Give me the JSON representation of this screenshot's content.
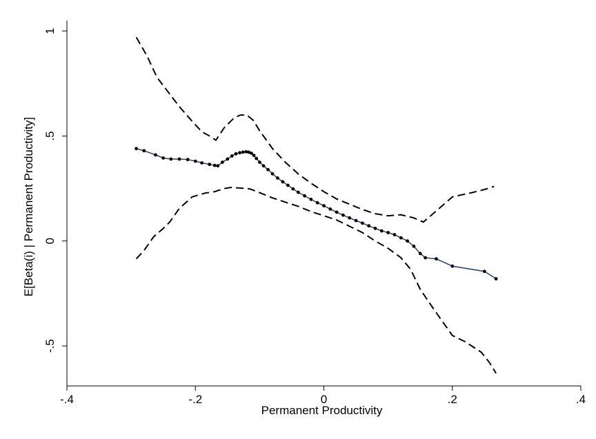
{
  "chart_data": {
    "type": "line",
    "title": "",
    "xlabel": "Permanent Productivity",
    "ylabel": "E[Beta(i) | Permanent Productivity]",
    "xlim": [
      -0.4,
      0.4
    ],
    "ylim": [
      -0.6,
      1.0
    ],
    "xticks": [
      -0.4,
      -0.2,
      0,
      0.2,
      0.4
    ],
    "xtick_labels": [
      "-.4",
      "-.2",
      "0",
      ".2",
      ".4"
    ],
    "yticks": [
      -0.5,
      0,
      0.5,
      1
    ],
    "ytick_labels": [
      "-.5",
      "0",
      ".5",
      "1"
    ],
    "grid": false,
    "legend": "none",
    "colors": {
      "estimate_line": "#2f4a73",
      "markers": "#000000",
      "bands": "#000000"
    },
    "series": [
      {
        "role": "estimate",
        "style": "solid-with-markers",
        "x": [
          -0.292,
          -0.28,
          -0.262,
          -0.25,
          -0.238,
          -0.225,
          -0.212,
          -0.2,
          -0.19,
          -0.178,
          -0.17,
          -0.165,
          -0.158,
          -0.15,
          -0.143,
          -0.137,
          -0.131,
          -0.126,
          -0.121,
          -0.117,
          -0.113,
          -0.109,
          -0.105,
          -0.1,
          -0.094,
          -0.087,
          -0.08,
          -0.072,
          -0.064,
          -0.056,
          -0.048,
          -0.04,
          -0.03,
          -0.02,
          -0.01,
          0.0,
          0.01,
          0.02,
          0.03,
          0.04,
          0.05,
          0.06,
          0.07,
          0.08,
          0.09,
          0.1,
          0.11,
          0.12,
          0.13,
          0.14,
          0.15,
          0.158,
          0.175,
          0.2,
          0.25,
          0.268
        ],
        "y": [
          0.44,
          0.43,
          0.41,
          0.395,
          0.39,
          0.39,
          0.388,
          0.38,
          0.372,
          0.365,
          0.36,
          0.358,
          0.375,
          0.39,
          0.405,
          0.415,
          0.42,
          0.423,
          0.425,
          0.423,
          0.418,
          0.408,
          0.393,
          0.375,
          0.358,
          0.34,
          0.32,
          0.3,
          0.282,
          0.265,
          0.248,
          0.232,
          0.215,
          0.198,
          0.182,
          0.168,
          0.152,
          0.137,
          0.123,
          0.11,
          0.097,
          0.085,
          0.072,
          0.06,
          0.048,
          0.04,
          0.03,
          0.015,
          0.0,
          -0.025,
          -0.06,
          -0.08,
          -0.085,
          -0.12,
          -0.145,
          -0.18
        ]
      },
      {
        "role": "upper-band",
        "style": "dashed",
        "x": [
          -0.292,
          -0.275,
          -0.26,
          -0.245,
          -0.225,
          -0.205,
          -0.19,
          -0.178,
          -0.168,
          -0.155,
          -0.14,
          -0.13,
          -0.12,
          -0.11,
          -0.1,
          -0.08,
          -0.06,
          -0.04,
          -0.02,
          0.0,
          0.02,
          0.04,
          0.06,
          0.08,
          0.1,
          0.12,
          0.14,
          0.155,
          0.17,
          0.2,
          0.23,
          0.25,
          0.265
        ],
        "y": [
          0.97,
          0.88,
          0.78,
          0.72,
          0.64,
          0.57,
          0.52,
          0.5,
          0.48,
          0.54,
          0.585,
          0.6,
          0.6,
          0.575,
          0.525,
          0.44,
          0.375,
          0.32,
          0.275,
          0.235,
          0.2,
          0.175,
          0.15,
          0.13,
          0.12,
          0.125,
          0.11,
          0.09,
          0.13,
          0.21,
          0.23,
          0.245,
          0.26
        ]
      },
      {
        "role": "lower-band",
        "style": "dashed",
        "x": [
          -0.292,
          -0.28,
          -0.265,
          -0.25,
          -0.24,
          -0.225,
          -0.205,
          -0.185,
          -0.17,
          -0.155,
          -0.145,
          -0.13,
          -0.115,
          -0.1,
          -0.08,
          -0.06,
          -0.04,
          -0.02,
          0.0,
          0.02,
          0.04,
          0.06,
          0.08,
          0.1,
          0.12,
          0.135,
          0.15,
          0.17,
          0.2,
          0.22,
          0.245,
          0.258,
          0.268
        ],
        "y": [
          -0.085,
          -0.045,
          0.02,
          0.06,
          0.09,
          0.155,
          0.21,
          0.228,
          0.235,
          0.25,
          0.255,
          0.252,
          0.248,
          0.23,
          0.205,
          0.185,
          0.165,
          0.14,
          0.12,
          0.1,
          0.07,
          0.04,
          0.0,
          -0.035,
          -0.08,
          -0.135,
          -0.23,
          -0.32,
          -0.45,
          -0.48,
          -0.53,
          -0.58,
          -0.63
        ]
      }
    ]
  }
}
